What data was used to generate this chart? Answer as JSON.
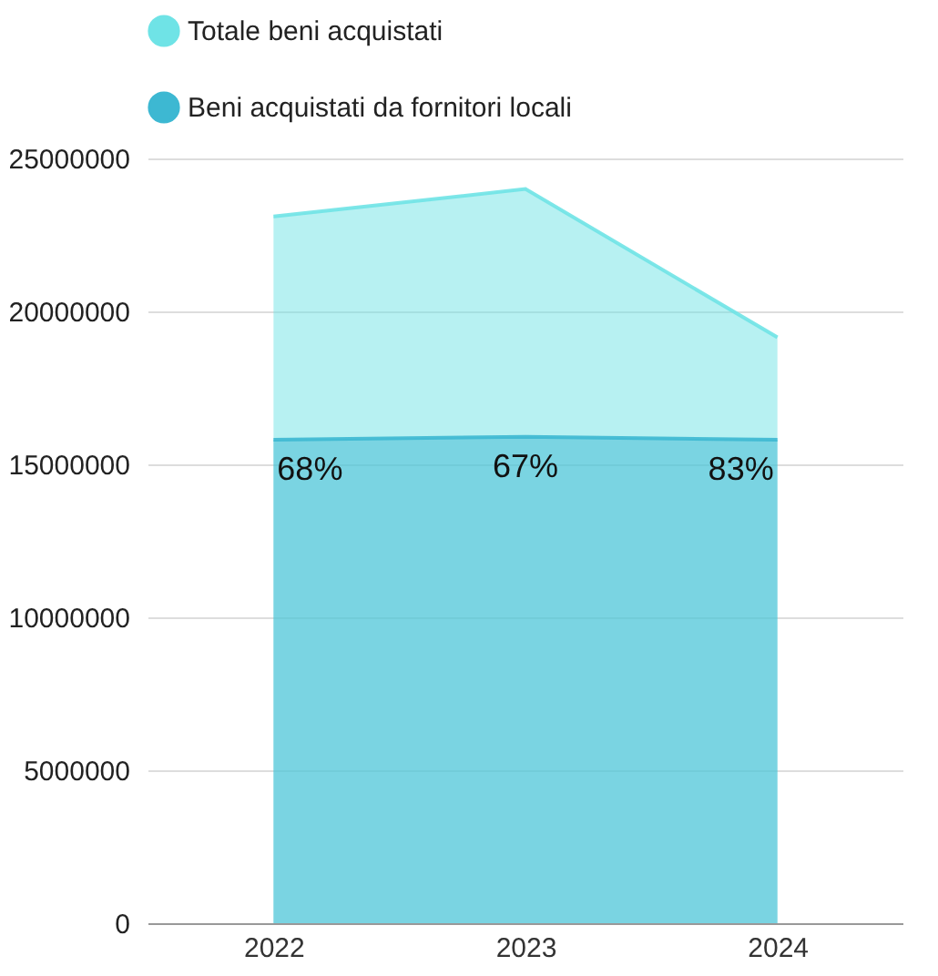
{
  "chart_data": {
    "type": "area",
    "categories": [
      "2022",
      "2023",
      "2024"
    ],
    "series": [
      {
        "name": "Totale beni acquistati",
        "color": "#6fe3e6",
        "values": [
          23100000,
          24000000,
          19150000
        ]
      },
      {
        "name": "Beni acquistati da fornitori locali",
        "color": "#3db8d2",
        "values": [
          15800000,
          15900000,
          15800000
        ]
      }
    ],
    "ylim": [
      0,
      25000000
    ],
    "yticks": [
      0,
      5000000,
      10000000,
      15000000,
      20000000,
      25000000
    ],
    "annotations": [
      "68%",
      "67%",
      "83%"
    ],
    "grid": "y",
    "legend": "top"
  }
}
